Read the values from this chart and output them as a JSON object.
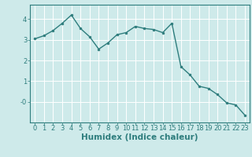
{
  "xlabel": "Humidex (Indice chaleur)",
  "ylabel": "",
  "x": [
    0,
    1,
    2,
    3,
    4,
    5,
    6,
    7,
    8,
    9,
    10,
    11,
    12,
    13,
    14,
    15,
    16,
    17,
    18,
    19,
    20,
    21,
    22,
    23
  ],
  "y": [
    3.05,
    3.2,
    3.45,
    3.8,
    4.2,
    3.55,
    3.15,
    2.55,
    2.85,
    3.25,
    3.35,
    3.65,
    3.55,
    3.5,
    3.35,
    3.8,
    1.7,
    1.3,
    0.75,
    0.65,
    0.35,
    -0.05,
    -0.15,
    -0.65
  ],
  "line_color": "#2e7d7d",
  "marker": "o",
  "marker_size": 2.0,
  "line_width": 1.0,
  "bg_color": "#ceeaea",
  "grid_color": "#ffffff",
  "tick_color": "#2e7d7d",
  "label_color": "#2e7d7d",
  "ylim": [
    -1.0,
    4.7
  ],
  "xlim": [
    -0.5,
    23.5
  ],
  "yticks": [
    0,
    1,
    2,
    3,
    4
  ],
  "ytick_labels": [
    "-0",
    "1",
    "2",
    "3",
    "4"
  ],
  "xticks": [
    0,
    1,
    2,
    3,
    4,
    5,
    6,
    7,
    8,
    9,
    10,
    11,
    12,
    13,
    14,
    15,
    16,
    17,
    18,
    19,
    20,
    21,
    22,
    23
  ],
  "xlabel_fontsize": 7.5,
  "tick_fontsize": 6.0,
  "grid_linewidth": 0.7
}
